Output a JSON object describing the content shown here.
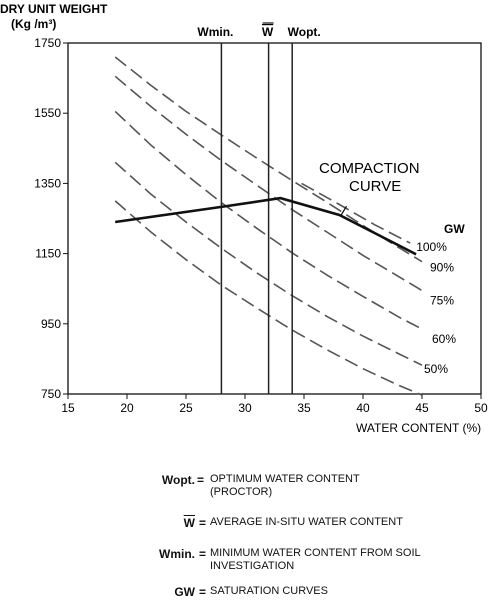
{
  "chart_data": {
    "type": "line",
    "ylabel_line1": "DRY UNIT WEIGHT",
    "ylabel_line2": "(Kg /m³)",
    "xlabel": "WATER CONTENT (%)",
    "xlim": [
      15,
      50
    ],
    "ylim": [
      750,
      1750
    ],
    "xticks": [
      15,
      20,
      25,
      30,
      35,
      40,
      45,
      50
    ],
    "yticks": [
      750,
      950,
      1150,
      1350,
      1550,
      1750
    ],
    "grid": false,
    "vlines": [
      {
        "label": "Wmin.",
        "x": 28
      },
      {
        "label": "W",
        "x": 32
      },
      {
        "label": "Wopt.",
        "x": 34
      }
    ],
    "saturation_label": "GW",
    "saturation_curves": [
      {
        "name": "100%",
        "points": [
          [
            34.8,
            1350
          ],
          [
            38,
            1290
          ],
          [
            41,
            1232
          ],
          [
            44,
            1180
          ]
        ]
      },
      {
        "name": "90%",
        "points": [
          [
            19,
            1710
          ],
          [
            22,
            1630
          ],
          [
            25,
            1555
          ],
          [
            28,
            1488
          ],
          [
            31,
            1422
          ],
          [
            34,
            1358
          ],
          [
            37,
            1295
          ],
          [
            40,
            1230
          ],
          [
            43,
            1168
          ],
          [
            45,
            1127
          ]
        ]
      },
      {
        "name": "75%",
        "points": [
          [
            19,
            1655
          ],
          [
            22,
            1570
          ],
          [
            25,
            1490
          ],
          [
            28,
            1415
          ],
          [
            31,
            1345
          ],
          [
            34,
            1275
          ],
          [
            37,
            1210
          ],
          [
            40,
            1145
          ],
          [
            43,
            1085
          ],
          [
            45,
            1045
          ]
        ]
      },
      {
        "name": "60%",
        "points": [
          [
            19,
            1555
          ],
          [
            22,
            1460
          ],
          [
            25,
            1375
          ],
          [
            28,
            1295
          ],
          [
            31,
            1222
          ],
          [
            34,
            1152
          ],
          [
            37,
            1088
          ],
          [
            40,
            1028
          ],
          [
            43,
            970
          ],
          [
            45,
            935
          ]
        ]
      },
      {
        "name": "50%",
        "points": [
          [
            19,
            1410
          ],
          [
            22,
            1320
          ],
          [
            25,
            1240
          ],
          [
            28,
            1165
          ],
          [
            31,
            1095
          ],
          [
            34,
            1030
          ],
          [
            37,
            970
          ],
          [
            40,
            915
          ],
          [
            43,
            865
          ],
          [
            45,
            832
          ]
        ]
      },
      {
        "name": "",
        "points": [
          [
            19,
            1300
          ],
          [
            22,
            1212
          ],
          [
            25,
            1133
          ],
          [
            28,
            1060
          ],
          [
            31,
            995
          ],
          [
            34,
            932
          ],
          [
            37,
            875
          ],
          [
            40,
            822
          ],
          [
            43,
            775
          ],
          [
            45,
            747
          ]
        ]
      }
    ],
    "compaction_curve": {
      "label_line1": "COMPACTION",
      "label_line2": "CURVE",
      "points": [
        [
          19,
          1240
        ],
        [
          28,
          1283
        ],
        [
          33,
          1308
        ],
        [
          38,
          1260
        ],
        [
          44.5,
          1148
        ]
      ]
    }
  },
  "legend": [
    {
      "key": "Wopt.",
      "eq": "=",
      "line1": "OPTIMUM WATER CONTENT",
      "line2": "(PROCTOR)"
    },
    {
      "key": "W",
      "eq": "=",
      "line1": "AVERAGE IN-SITU WATER CONTENT",
      "line2": ""
    },
    {
      "key": "Wmin.",
      "eq": "=",
      "line1": "MINIMUM WATER CONTENT FROM SOIL",
      "line2": "INVESTIGATION"
    },
    {
      "key": "GW",
      "eq": "=",
      "line1": "SATURATION CURVES",
      "line2": ""
    }
  ]
}
